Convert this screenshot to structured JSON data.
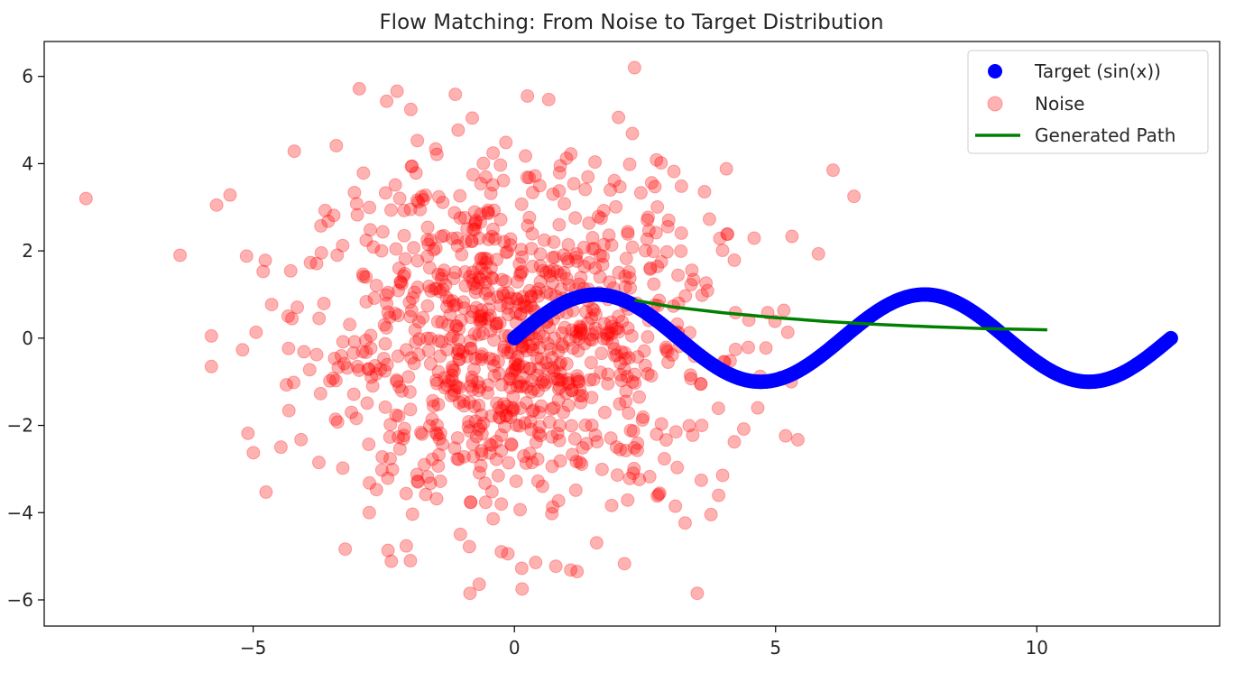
{
  "chart_data": {
    "type": "scatter",
    "title": "Flow Matching: From Noise to Target Distribution",
    "xlabel": "",
    "ylabel": "",
    "xlim": [
      -9.0,
      13.5
    ],
    "ylim": [
      -6.6,
      6.8
    ],
    "x_ticks": [
      -5,
      0,
      5,
      10
    ],
    "x_tick_labels": [
      "−5",
      "0",
      "5",
      "10"
    ],
    "y_ticks": [
      -6,
      -4,
      -2,
      0,
      2,
      4,
      6
    ],
    "y_tick_labels": [
      "−6",
      "−4",
      "−2",
      "0",
      "2",
      "4",
      "6"
    ],
    "grid": false,
    "legend_position": "top-right",
    "series": [
      {
        "name": "Target (sin(x))",
        "kind": "scatter",
        "color": "#0000ff",
        "function": "y = sin(x)",
        "x_range": [
          0,
          12.566
        ],
        "n_points": 400,
        "marker": "circle"
      },
      {
        "name": "Noise",
        "kind": "scatter",
        "color": "#ff0000",
        "opacity": 0.3,
        "distribution": "2D Gaussian",
        "mean": [
          0,
          0
        ],
        "std": [
          2,
          2
        ],
        "n_points": 1000,
        "marker": "circle",
        "notable_points": [
          {
            "x": -8.2,
            "y": 3.2
          },
          {
            "x": -6.4,
            "y": 1.9
          },
          {
            "x": -5.8,
            "y": 0.05
          },
          {
            "x": -5.8,
            "y": -0.65
          },
          {
            "x": -5.7,
            "y": 3.05
          },
          {
            "x": 2.3,
            "y": 6.2
          },
          {
            "x": 0.25,
            "y": 5.55
          },
          {
            "x": -0.85,
            "y": -5.85
          },
          {
            "x": 3.5,
            "y": -5.85
          },
          {
            "x": 6.1,
            "y": 3.85
          },
          {
            "x": 6.5,
            "y": 3.25
          },
          {
            "x": 5.1,
            "y": -0.9
          },
          {
            "x": 5.3,
            "y": -1.0
          },
          {
            "x": 1.2,
            "y": -5.35
          }
        ]
      },
      {
        "name": "Generated Path",
        "kind": "line",
        "color": "#008000",
        "x": [
          2.3,
          3.0,
          4.0,
          5.0,
          6.0,
          7.0,
          8.0,
          9.0,
          10.2
        ],
        "y": [
          0.87,
          0.72,
          0.58,
          0.47,
          0.38,
          0.31,
          0.26,
          0.22,
          0.19
        ]
      }
    ]
  }
}
